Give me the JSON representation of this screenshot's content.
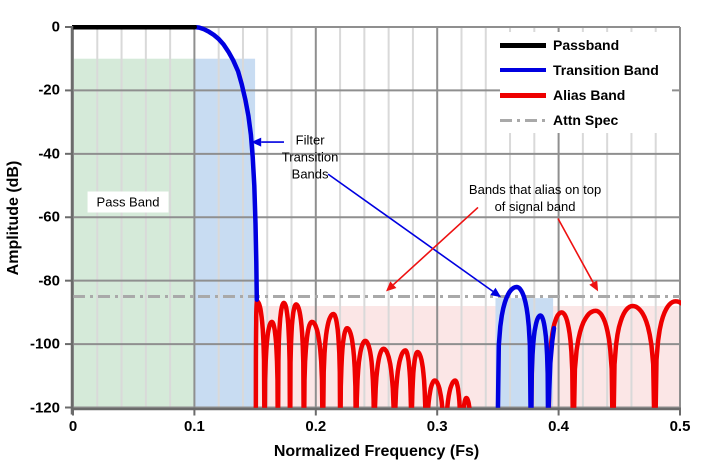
{
  "chart_data": {
    "type": "line",
    "title": "",
    "xlabel": "Normalized Frequency (Fs)",
    "ylabel": "Amplitude (dB)",
    "xlim": [
      0,
      0.5
    ],
    "ylim": [
      -120,
      0
    ],
    "grid": {
      "x_minor_step": 0.02,
      "x_major_step": 0.1,
      "y_major_step": 20,
      "minor_color": "#d9d9d9",
      "major_color": "#8f8f8f",
      "axis_color": "#6b6b6b"
    },
    "x_ticks": [
      0,
      0.1,
      0.2,
      0.3,
      0.4,
      0.5
    ],
    "x_tick_labels": [
      "0",
      "0.1",
      "0.2",
      "0.3",
      "0.4",
      "0.5"
    ],
    "y_ticks": [
      0,
      -20,
      -40,
      -60,
      -80,
      -100,
      -120
    ],
    "y_tick_labels": [
      "0",
      "-20",
      "-40",
      "-60",
      "-80",
      "-100",
      "-120"
    ],
    "attn_spec": {
      "db": -85,
      "color": "#a9a9a9"
    },
    "regions": [
      {
        "name": "pass-band-region",
        "f1": 0.0,
        "f2": 0.1,
        "top_db": -10,
        "bottom_db": -120,
        "color": "#d5ead9"
      },
      {
        "name": "transition-band-region-1",
        "f1": 0.1,
        "f2": 0.15,
        "top_db": -10,
        "bottom_db": -120,
        "color": "#c8dcf2"
      },
      {
        "name": "alias-band-region",
        "f1": 0.15,
        "f2": 0.5,
        "top_db": -88,
        "bottom_db": -120,
        "color": "#fbe6e6"
      },
      {
        "name": "transition-band-region-2",
        "f1": 0.348,
        "f2": 0.3955,
        "top_db": -85.5,
        "bottom_db": -120,
        "color": "#c8dcf2"
      }
    ],
    "series": [
      {
        "name": "alias-band-lobes-1",
        "kind": "lobes",
        "color": "#ee0000",
        "width": 4.5,
        "lobes": [
          [
            0.1506,
            0.1515,
            -86.5,
            0.1578
          ],
          [
            0.1578,
            0.1638,
            -93,
            0.1688
          ],
          [
            0.1688,
            0.1737,
            -87,
            0.1788
          ],
          [
            0.1788,
            0.1838,
            -87.5,
            0.1902
          ],
          [
            0.1902,
            0.1968,
            -93,
            0.2058
          ],
          [
            0.2058,
            0.2145,
            -90.5,
            0.2202
          ],
          [
            0.2202,
            0.2258,
            -95,
            0.2332
          ],
          [
            0.2332,
            0.2408,
            -99,
            0.2482
          ],
          [
            0.2482,
            0.2558,
            -101.5,
            0.2648
          ],
          [
            0.2648,
            0.2738,
            -102,
            0.2788
          ],
          [
            0.2788,
            0.2838,
            -102.5,
            0.2908
          ],
          [
            0.2908,
            0.298,
            -111.5,
            0.3062
          ],
          [
            0.3062,
            0.3148,
            -111.5,
            0.3198
          ],
          [
            0.3198,
            0.324,
            -117,
            0.329
          ]
        ]
      },
      {
        "name": "alias-band-lobes-2",
        "kind": "lobes",
        "color": "#ee0000",
        "width": 4.5,
        "lobes": [
          [
            0.3915,
            0.4025,
            -90,
            0.412
          ],
          [
            0.412,
            0.4305,
            -89.5,
            0.4448
          ],
          [
            0.4448,
            0.461,
            -88,
            0.4793
          ],
          [
            0.4793,
            0.4965,
            -86.5,
            0.516
          ]
        ]
      },
      {
        "name": "transition-band-lobes",
        "kind": "lobes",
        "color": "#0000e0",
        "width": 4.5,
        "lobes": [
          [
            0.3495,
            0.3655,
            -82,
            0.3773
          ],
          [
            0.3773,
            0.385,
            -91,
            0.3915
          ]
        ]
      },
      {
        "name": "transition-band-flank",
        "kind": "line",
        "color": "#0000e0",
        "width": 4.5,
        "points": [
          [
            0.3918,
            -120
          ],
          [
            0.3932,
            -106
          ],
          [
            0.3948,
            -99
          ],
          [
            0.3962,
            -95
          ]
        ]
      },
      {
        "name": "transition-band-rolloff",
        "kind": "line",
        "color": "#0000e0",
        "width": 4.5,
        "points": [
          [
            0.1,
            0
          ],
          [
            0.104,
            -0.2
          ],
          [
            0.108,
            -0.7
          ],
          [
            0.112,
            -1.5
          ],
          [
            0.116,
            -2.5
          ],
          [
            0.12,
            -3.8
          ],
          [
            0.124,
            -5.5
          ],
          [
            0.128,
            -7.8
          ],
          [
            0.132,
            -10.5
          ],
          [
            0.136,
            -14
          ],
          [
            0.139,
            -18
          ],
          [
            0.142,
            -23
          ],
          [
            0.1445,
            -28
          ],
          [
            0.1465,
            -34
          ],
          [
            0.148,
            -41
          ],
          [
            0.1493,
            -50
          ],
          [
            0.1503,
            -62
          ],
          [
            0.151,
            -74
          ],
          [
            0.1514,
            -86
          ]
        ]
      },
      {
        "name": "passband-line",
        "kind": "line",
        "color": "#000000",
        "width": 5,
        "points": [
          [
            0,
            0
          ],
          [
            0.1,
            0
          ]
        ]
      }
    ],
    "legend": [
      {
        "label": "Passband",
        "color": "#000000",
        "style": "solid",
        "weight": 5
      },
      {
        "label": "Transition Band",
        "color": "#0000e0",
        "style": "solid",
        "weight": 4
      },
      {
        "label": "Alias Band",
        "color": "#ee0000",
        "style": "solid",
        "weight": 5
      },
      {
        "label": "Attn Spec",
        "color": "#a9a9a9",
        "style": "dashdot",
        "weight": 3
      }
    ],
    "annotations": {
      "passband_label": {
        "text": "Pass Band",
        "at": [
          0.0453,
          -55.3
        ]
      },
      "filter_note": {
        "lines": [
          "Filter",
          "Transition",
          "Bands"
        ],
        "at": [
          0.1953,
          -41.0
        ],
        "arrows": [
          {
            "from": [
              0.1738,
              -36.3
            ],
            "to": [
              0.1468,
              -36.3
            ],
            "color": "#0000e0"
          },
          {
            "from": [
              0.2101,
              -46.4
            ],
            "to": [
              0.3526,
              -85.2
            ],
            "color": "#0000e0"
          }
        ]
      },
      "alias_note": {
        "lines": [
          "Bands that alias on top",
          "of signal band"
        ],
        "at": [
          0.3806,
          -53.9
        ],
        "arrows": [
          {
            "from": [
              0.3336,
              -56.9
            ],
            "to": [
              0.2578,
              -83.4
            ],
            "color": "#ee1111"
          },
          {
            "from": [
              0.3995,
              -60.4
            ],
            "to": [
              0.4325,
              -83.4
            ],
            "color": "#ee1111"
          }
        ]
      }
    }
  }
}
